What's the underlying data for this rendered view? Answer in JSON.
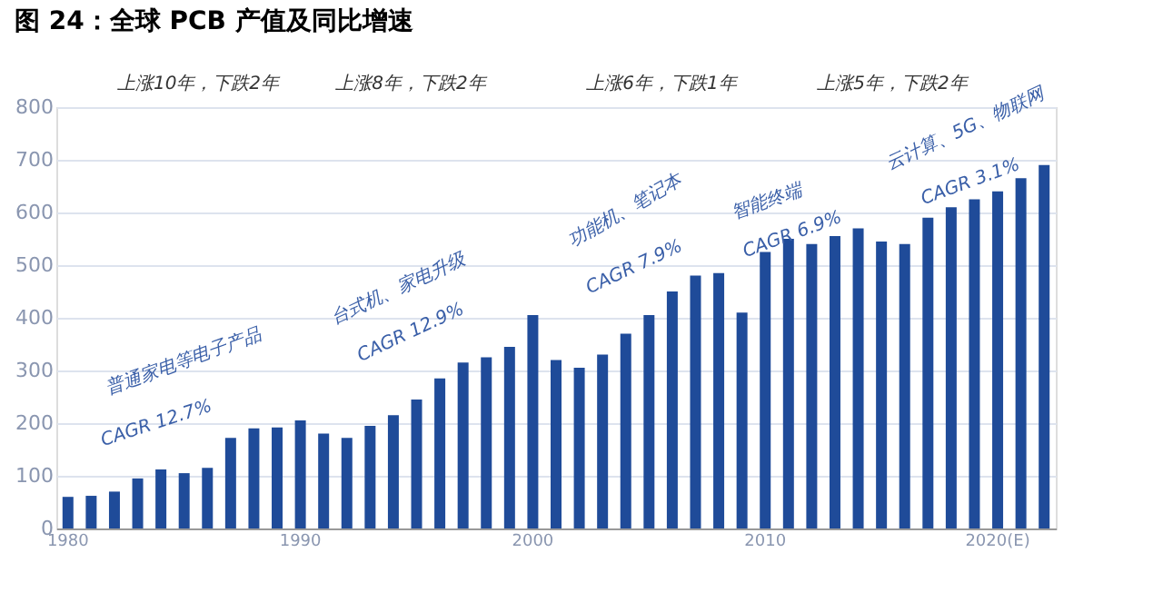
{
  "chart_data": {
    "type": "bar",
    "title": "图 24：全球 PCB 产值及同比增速",
    "categories": [
      "1980",
      null,
      null,
      null,
      null,
      null,
      null,
      null,
      null,
      null,
      "1990",
      null,
      null,
      null,
      null,
      null,
      null,
      null,
      null,
      null,
      "2000",
      null,
      null,
      null,
      null,
      null,
      null,
      null,
      null,
      null,
      "2010",
      null,
      null,
      null,
      null,
      null,
      null,
      null,
      null,
      null,
      "2020(E)",
      null,
      null
    ],
    "values": [
      60,
      62,
      70,
      95,
      112,
      105,
      115,
      172,
      190,
      192,
      205,
      180,
      172,
      195,
      215,
      245,
      285,
      315,
      325,
      345,
      405,
      320,
      305,
      330,
      370,
      405,
      450,
      480,
      485,
      410,
      525,
      550,
      540,
      555,
      570,
      545,
      540,
      590,
      610,
      625,
      640,
      665,
      690
    ],
    "color": "#1f4b99",
    "ylim": [
      0,
      800
    ],
    "yticks": [
      0,
      100,
      200,
      300,
      400,
      500,
      600,
      700,
      800
    ],
    "grid": "y",
    "annotations": [
      "上涨10年，下跌2年",
      "上涨8年，下跌2年",
      "上涨6年，下跌1年",
      "上涨5年，下跌2年",
      "普通家电等电子产品",
      "CAGR 12.7%",
      "台式机、家电升级",
      "CAGR 12.9%",
      "功能机、笔记本",
      "CAGR 7.9%",
      "智能终端",
      "CAGR 6.9%",
      "云计算、5G、物联网",
      "CAGR 3.1%"
    ]
  }
}
